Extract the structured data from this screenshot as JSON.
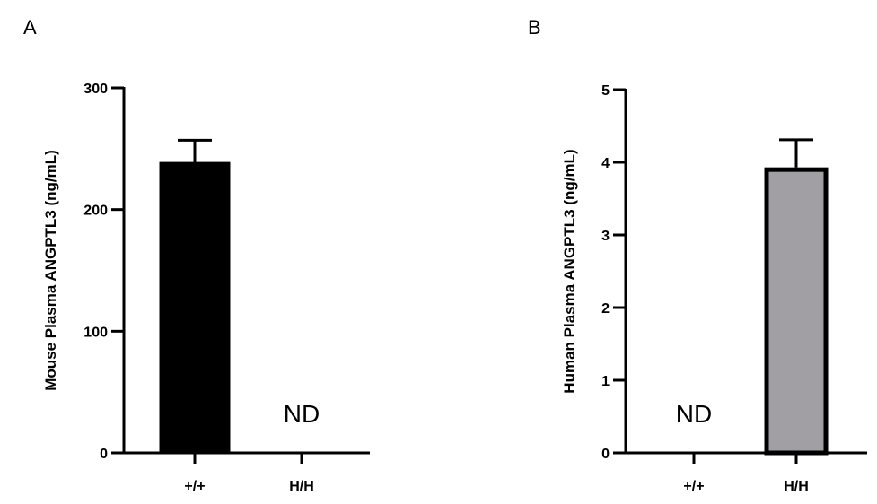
{
  "figure": {
    "panel_a_letter": "A",
    "panel_b_letter": "B"
  },
  "chart_data": [
    {
      "type": "bar",
      "panel": "A",
      "title": "",
      "xlabel": "",
      "ylabel": "Mouse Plasma ANGPTL3 (ng/mL)",
      "categories": [
        "+/+",
        "H/H"
      ],
      "values": [
        238,
        null
      ],
      "error": [
        19,
        null
      ],
      "bar_colors": [
        "#000000",
        "#000000"
      ],
      "annotations": [
        {
          "category": "H/H",
          "text": "ND"
        }
      ],
      "ylim": [
        0,
        300
      ],
      "yticks": [
        0,
        100,
        200,
        300
      ],
      "ytick_labels": [
        "0",
        "100",
        "200",
        "300"
      ],
      "grid": false
    },
    {
      "type": "bar",
      "panel": "B",
      "title": "",
      "xlabel": "",
      "ylabel": "Human Plasma ANGPTL3 (ng/mL)",
      "categories": [
        "+/+",
        "H/H"
      ],
      "values": [
        null,
        3.93
      ],
      "error": [
        null,
        0.38
      ],
      "bar_colors": [
        "#a19fa3",
        "#a19fa3"
      ],
      "annotations": [
        {
          "category": "+/+",
          "text": "ND"
        }
      ],
      "ylim": [
        0,
        5
      ],
      "yticks": [
        0,
        1,
        2,
        3,
        4,
        5
      ],
      "ytick_labels": [
        "0",
        "1",
        "2",
        "3",
        "4",
        "5"
      ],
      "grid": false
    }
  ]
}
